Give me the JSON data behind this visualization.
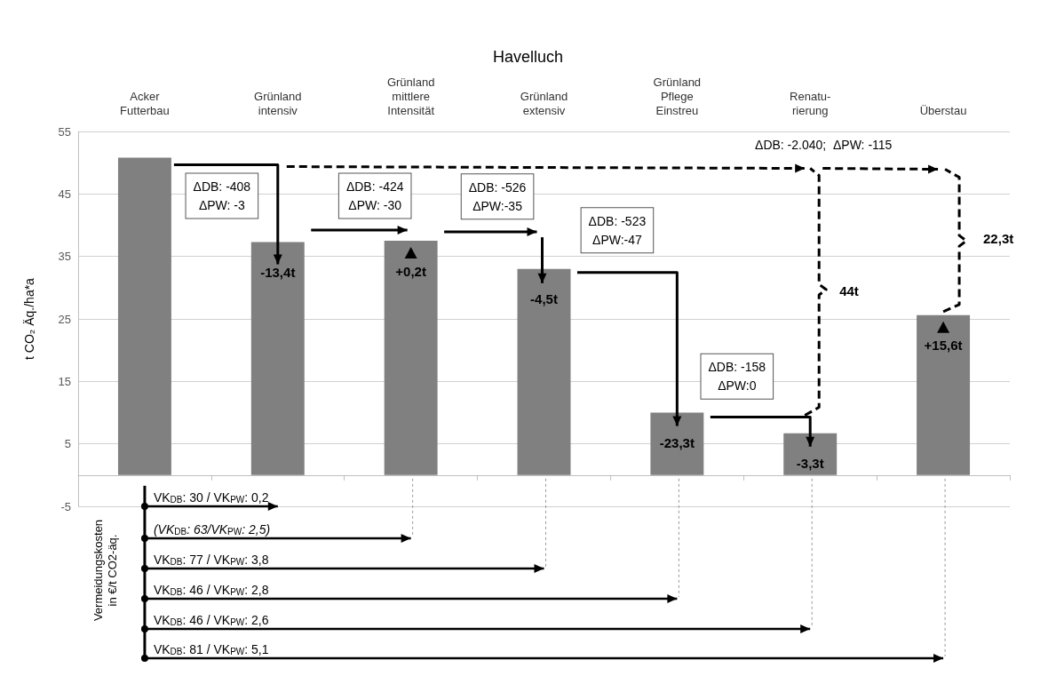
{
  "chart_data": {
    "type": "bar",
    "title": "Havelluch",
    "ylabel": "t CO₂ Äq./ha*a",
    "categories": [
      "Acker\nFutterbau",
      "Grünland\nintensiv",
      "Grünland\nmittlere\nIntensität",
      "Grünland\nextensiv",
      "Grünland\nPflege\nEinstreu",
      "Renatu-\nrierung",
      "Überstau"
    ],
    "values": [
      50.8,
      37.3,
      37.5,
      33.0,
      10.0,
      6.7,
      25.6
    ],
    "color": "#808080",
    "ylim": [
      -5,
      55
    ],
    "yticks": [
      -5,
      5,
      15,
      25,
      35,
      45,
      55
    ],
    "grid": "y",
    "annotations": [
      "ΔDB: -408\nΔPW: -3",
      "ΔDB: -424\nΔPW: -30",
      "ΔDB: -526\nΔPW:-35",
      "ΔDB: -523\nΔPW:-47",
      "ΔDB: -158\nΔPW:0",
      "ΔDB: -2.040;  ΔPW: -115",
      {
        "text": "-13,4t",
        "x": "Grünland\nintensiv",
        "y": 37.3
      },
      {
        "text": "+0,2t",
        "x": "Grünland\nmittlere\nIntensität",
        "y": 37.5
      },
      {
        "text": "-4,5t",
        "x": "Grünland\nextensiv",
        "y": 33.0
      },
      {
        "text": "-23,3t",
        "x": "Grünland\nPflege\nEinstreu",
        "y": 10.0
      },
      {
        "text": "-3,3t",
        "x": "Renatu-\nrierung",
        "y": 6.7
      },
      {
        "text": "+15,6t",
        "x": "Überstau",
        "y": 25.6
      },
      "44t",
      "22,3t",
      "Vermeidungskosten\nin €/t CO2-äq.",
      "VK$_{DB}$: 30 / VK$_{PW}$: 0,2",
      "(VK$_{DB}$: 63/VK$_{PW}$: 2,5)",
      "VK$_{DB}$: 77 / VK$_{PW}$: 3,8",
      "VK$_{DB}$: 46 / VK$_{PW}$: 2,8",
      "VK$_{DB}$: 46 / VK$_{PW}$: 2,6",
      "VK$_{DB}$: 81 / VK$_{PW}$: 5,1"
    ]
  }
}
